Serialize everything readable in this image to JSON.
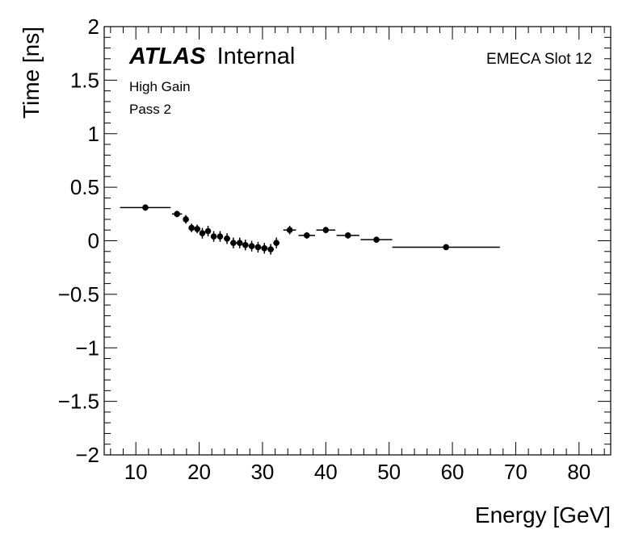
{
  "labels": {
    "atlas_bold": "ATLAS",
    "atlas_status": "Internal",
    "gain": "High Gain",
    "pass": "Pass 2",
    "slot": "EMECA Slot 12"
  },
  "chart_data": {
    "type": "scatter",
    "xlabel": "Energy [GeV]",
    "ylabel": "Time [ns]",
    "xlim": [
      5,
      85
    ],
    "ylim": [
      -2,
      2
    ],
    "x_ticks": [
      10,
      20,
      30,
      40,
      50,
      60,
      70,
      80
    ],
    "y_ticks": [
      -2,
      -1.5,
      -1,
      -0.5,
      0,
      0.5,
      1,
      1.5,
      2
    ],
    "x_tick_labels": [
      "10",
      "20",
      "30",
      "40",
      "50",
      "60",
      "70",
      "80"
    ],
    "y_tick_labels": [
      "−2",
      "−1.5",
      "−1",
      "−0.5",
      "0",
      "0.5",
      "1",
      "1.5",
      "2"
    ],
    "grid": false,
    "points": [
      {
        "x": 11.5,
        "y": 0.31,
        "xerr": 4.0,
        "yerr": 0.03
      },
      {
        "x": 16.5,
        "y": 0.25,
        "xerr": 0.8,
        "yerr": 0.03
      },
      {
        "x": 17.9,
        "y": 0.2,
        "xerr": 0.4,
        "yerr": 0.04
      },
      {
        "x": 18.8,
        "y": 0.12,
        "xerr": 0.4,
        "yerr": 0.04
      },
      {
        "x": 19.7,
        "y": 0.11,
        "xerr": 0.4,
        "yerr": 0.04
      },
      {
        "x": 20.5,
        "y": 0.07,
        "xerr": 0.4,
        "yerr": 0.05
      },
      {
        "x": 21.4,
        "y": 0.09,
        "xerr": 0.4,
        "yerr": 0.05
      },
      {
        "x": 22.3,
        "y": 0.04,
        "xerr": 0.4,
        "yerr": 0.05
      },
      {
        "x": 23.3,
        "y": 0.04,
        "xerr": 0.4,
        "yerr": 0.05
      },
      {
        "x": 24.4,
        "y": 0.02,
        "xerr": 0.5,
        "yerr": 0.05
      },
      {
        "x": 25.4,
        "y": -0.02,
        "xerr": 0.5,
        "yerr": 0.05
      },
      {
        "x": 26.4,
        "y": -0.02,
        "xerr": 0.5,
        "yerr": 0.05
      },
      {
        "x": 27.3,
        "y": -0.04,
        "xerr": 0.5,
        "yerr": 0.05
      },
      {
        "x": 28.3,
        "y": -0.05,
        "xerr": 0.5,
        "yerr": 0.05
      },
      {
        "x": 29.3,
        "y": -0.06,
        "xerr": 0.5,
        "yerr": 0.05
      },
      {
        "x": 30.3,
        "y": -0.07,
        "xerr": 0.5,
        "yerr": 0.05
      },
      {
        "x": 31.3,
        "y": -0.08,
        "xerr": 0.5,
        "yerr": 0.05
      },
      {
        "x": 32.2,
        "y": -0.02,
        "xerr": 0.5,
        "yerr": 0.05
      },
      {
        "x": 34.3,
        "y": 0.1,
        "xerr": 1.0,
        "yerr": 0.04
      },
      {
        "x": 37.0,
        "y": 0.05,
        "xerr": 1.3,
        "yerr": 0.03
      },
      {
        "x": 40.0,
        "y": 0.1,
        "xerr": 1.5,
        "yerr": 0.03
      },
      {
        "x": 43.5,
        "y": 0.05,
        "xerr": 1.8,
        "yerr": 0.03
      },
      {
        "x": 48.0,
        "y": 0.01,
        "xerr": 2.5,
        "yerr": 0.02
      },
      {
        "x": 59.0,
        "y": -0.06,
        "xerr": 8.5,
        "yerr": 0.02
      }
    ]
  }
}
